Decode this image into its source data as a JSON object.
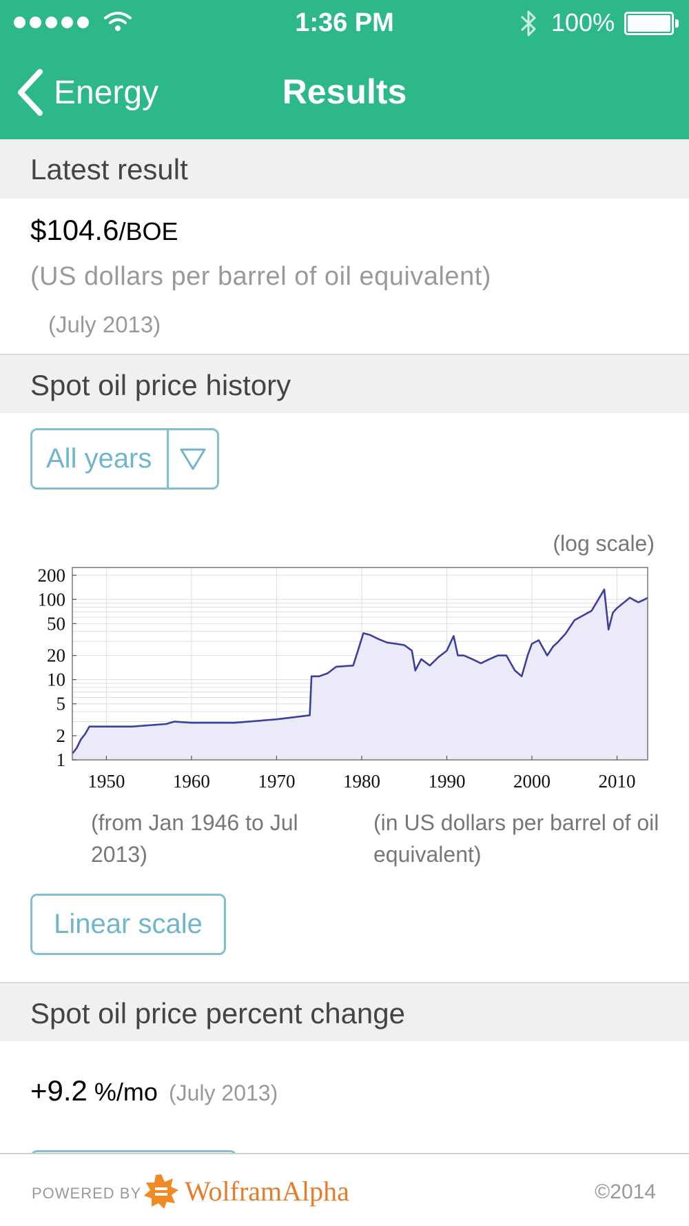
{
  "status_bar": {
    "time": "1:36 PM",
    "battery": "100%"
  },
  "nav": {
    "back_label": "Energy",
    "title": "Results"
  },
  "latest": {
    "header": "Latest result",
    "value": "$104.6",
    "unit": "/BOE",
    "note": "(US dollars per barrel of oil equivalent)",
    "date": "(July 2013)"
  },
  "history": {
    "header": "Spot oil price history",
    "dropdown_value": "All years",
    "scale_note": "(log scale)",
    "caption_range": "(from Jan 1946 to Jul 2013)",
    "caption_units": "(in US dollars per barrel of oil equivalent)",
    "linear_button": "Linear scale"
  },
  "percent": {
    "header": "Spot oil price percent change",
    "value": "+9.2",
    "unit": " %/mo",
    "date": "(July 2013)"
  },
  "footer": {
    "powered_by": "POWERED BY",
    "brand": "WolframAlpha",
    "copyright": "©2014"
  },
  "chart_data": {
    "type": "area",
    "y_scale": "log",
    "xlim": [
      1946,
      2013.6
    ],
    "ylim": [
      1,
      250
    ],
    "x_ticks": [
      1950,
      1960,
      1970,
      1980,
      1990,
      2000,
      2010
    ],
    "y_ticks": [
      1,
      2,
      5,
      10,
      20,
      50,
      100,
      200
    ],
    "x": [
      1946,
      1946.5,
      1947,
      1947.5,
      1948,
      1948.2,
      1950,
      1953,
      1957,
      1958,
      1960,
      1965,
      1970,
      1972,
      1973.9,
      1974.1,
      1975,
      1976,
      1977,
      1979,
      1979.5,
      1980.2,
      1981,
      1982,
      1983,
      1984,
      1985,
      1985.9,
      1986.3,
      1987,
      1988,
      1989,
      1990,
      1990.8,
      1991.3,
      1992,
      1993,
      1994,
      1995,
      1996,
      1997,
      1998,
      1998.8,
      1999.5,
      2000,
      2000.8,
      2001.8,
      2002.5,
      2003,
      2004,
      2005,
      2006,
      2007,
      2008.5,
      2009,
      2009.5,
      2010,
      2011,
      2011.5,
      2012,
      2012.5,
      2013,
      2013.6
    ],
    "y": [
      1.2,
      1.4,
      1.8,
      2.1,
      2.6,
      2.6,
      2.6,
      2.6,
      2.8,
      3.0,
      2.9,
      2.9,
      3.2,
      3.4,
      3.6,
      11,
      11,
      12,
      14.5,
      15,
      22,
      38,
      36,
      32,
      29,
      28,
      27,
      23,
      13,
      18,
      15,
      19,
      23,
      35,
      20,
      20,
      18,
      16,
      18,
      20,
      20,
      13,
      11,
      20,
      28,
      31,
      20,
      26,
      29,
      38,
      55,
      63,
      72,
      133,
      42,
      68,
      78,
      95,
      105,
      98,
      92,
      97,
      104.6
    ]
  }
}
